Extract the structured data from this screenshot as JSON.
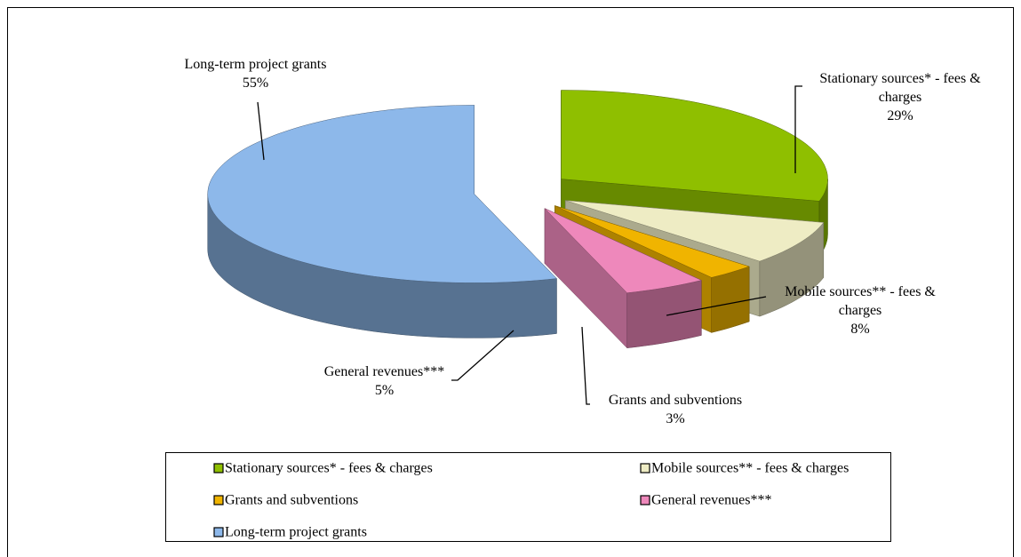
{
  "chart_data": {
    "type": "pie3d",
    "categories": [
      "Stationary sources* - fees & charges",
      "Mobile sources** - fees & charges",
      "Grants and subventions",
      "General revenues***",
      "Long-term project grants"
    ],
    "values": [
      29,
      8,
      3,
      5,
      55
    ],
    "value_labels": [
      "29%",
      "8%",
      "3%",
      "5%",
      "55%"
    ],
    "colors": [
      "#8fbf00",
      "#eeecc4",
      "#f0b400",
      "#ee88bb",
      "#8db8ea"
    ],
    "legend": "bottom"
  }
}
